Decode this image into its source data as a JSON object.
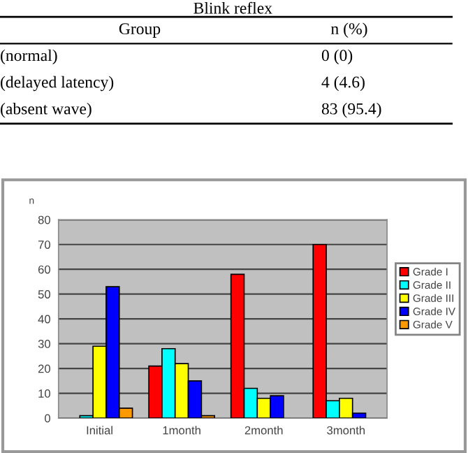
{
  "chart_data": [
    {
      "type": "other",
      "title": "Blink reflex",
      "annotations": [
        "Group",
        "n (%)",
        "(normal)",
        "0 (0)",
        "(delayed latency)",
        "4 (4.6)",
        "(absent wave)",
        "83 (95.4)"
      ]
    },
    {
      "type": "bar",
      "ylabel": "n",
      "categories": [
        "Initial",
        "1month",
        "2month",
        "3month"
      ],
      "series": [
        {
          "name": "Grade I",
          "color": "#ff0000",
          "values": [
            0,
            21,
            58,
            70
          ]
        },
        {
          "name": "Grade II",
          "color": "#00ffff",
          "values": [
            1,
            28,
            12,
            7
          ]
        },
        {
          "name": "Grade III",
          "color": "#ffff00",
          "values": [
            29,
            22,
            8,
            8
          ]
        },
        {
          "name": "Grade IV",
          "color": "#0000ff",
          "values": [
            53,
            15,
            9,
            2
          ]
        },
        {
          "name": "Grade V",
          "color": "#ff9900",
          "values": [
            4,
            1,
            0,
            0
          ]
        }
      ],
      "ylim": [
        0,
        80
      ],
      "yticks": [
        0,
        10,
        20,
        30,
        40,
        50,
        60,
        70,
        80
      ],
      "grid": "y",
      "legend": "right"
    }
  ]
}
